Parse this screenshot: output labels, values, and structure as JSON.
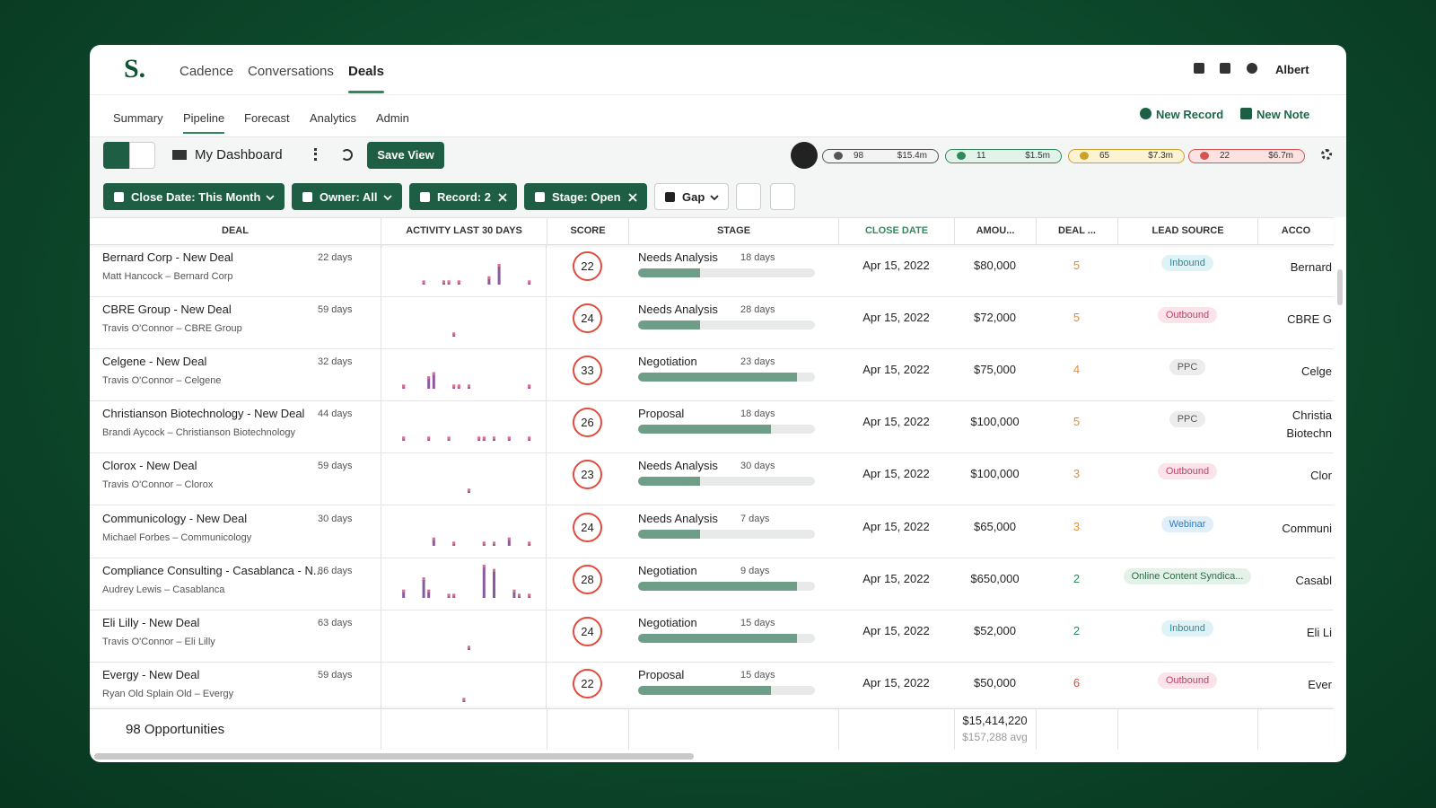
{
  "nav": {
    "logo": "S.",
    "items": [
      "Cadence",
      "Conversations",
      "Deals"
    ],
    "active": 2,
    "user": "Albert"
  },
  "subnav": {
    "items": [
      "Summary",
      "Pipeline",
      "Forecast",
      "Analytics",
      "Admin"
    ],
    "active": 1,
    "actions": [
      "New Record",
      "New Note"
    ]
  },
  "toolbar": {
    "view": "My Dashboard",
    "save": "Save View",
    "stats": [
      {
        "count": 98,
        "amount": "$15.4m",
        "color": "#555555",
        "bg": "#f3f3f3"
      },
      {
        "count": 11,
        "amount": "$1.5m",
        "color": "#2f8a5b",
        "bg": "#e3f3ea"
      },
      {
        "count": 65,
        "amount": "$7.3m",
        "color": "#c9a227",
        "bg": "#fbf3d4"
      },
      {
        "count": 22,
        "amount": "$6.7m",
        "color": "#d9534f",
        "bg": "#fbe3e3"
      }
    ]
  },
  "filters": [
    {
      "label": "Close Date: This Month",
      "removable": false,
      "dark": true
    },
    {
      "label": "Owner: All",
      "removable": false,
      "dark": true
    },
    {
      "label": "Record: 2",
      "removable": true,
      "dark": true
    },
    {
      "label": "Stage: Open",
      "removable": true,
      "dark": true
    },
    {
      "label": "Gap",
      "removable": false,
      "dark": false
    }
  ],
  "columns": [
    "DEAL",
    "ACTIVITY LAST 30 DAYS",
    "SCORE",
    "STAGE",
    "CLOSE DATE",
    "AMOU...",
    "DEAL ...",
    "LEAD SOURCE",
    "ACCO"
  ],
  "sorted_column": 4,
  "rows": [
    {
      "deal": "Bernard Corp - New Deal",
      "age": "22 days",
      "contact": "Matt Hancock – Bernard Corp",
      "activity": {
        "days": [
          6,
          10,
          11,
          13,
          19,
          21,
          27
        ],
        "counts": [
          1,
          1,
          1,
          1,
          2,
          5,
          1
        ]
      },
      "score": 22,
      "stage": "Needs Analysis",
      "stage_days": "18 days",
      "progress": 35,
      "close": "Apr 15, 2022",
      "amount": "$80,000",
      "deal_value": 5,
      "lead": "Inbound",
      "lead_color": "#2a8aa0",
      "lead_bg": "#dff2f5",
      "account": "Bernard"
    },
    {
      "deal": "CBRE Group - New Deal",
      "age": "59 days",
      "contact": "Travis O'Connor – CBRE Group",
      "activity": {
        "days": [
          12
        ],
        "counts": [
          1
        ]
      },
      "score": 24,
      "stage": "Needs Analysis",
      "stage_days": "28 days",
      "progress": 35,
      "close": "Apr 15, 2022",
      "amount": "$72,000",
      "deal_value": 5,
      "lead": "Outbound",
      "lead_color": "#c2416b",
      "lead_bg": "#fbe3ea",
      "account": "CBRE G"
    },
    {
      "deal": "Celgene - New Deal",
      "age": "32 days",
      "contact": "Travis O'Connor – Celgene",
      "activity": {
        "days": [
          2,
          7,
          8,
          12,
          13,
          15,
          27
        ],
        "counts": [
          1,
          3,
          4,
          1,
          1,
          1,
          1
        ]
      },
      "score": 33,
      "stage": "Negotiation",
      "stage_days": "23 days",
      "progress": 90,
      "close": "Apr 15, 2022",
      "amount": "$75,000",
      "deal_value": 4,
      "lead": "PPC",
      "lead_color": "#555555",
      "lead_bg": "#ececec",
      "account": "Celge"
    },
    {
      "deal": "Christianson Biotechnology - New Deal",
      "age": "44 days",
      "contact": "Brandi Aycock – Christianson Biotechnology",
      "activity": {
        "days": [
          2,
          7,
          11,
          17,
          18,
          20,
          23,
          27
        ],
        "counts": [
          1,
          1,
          1,
          1,
          1,
          1,
          1,
          1
        ]
      },
      "score": 26,
      "stage": "Proposal",
      "stage_days": "18 days",
      "progress": 75,
      "close": "Apr 15, 2022",
      "amount": "$100,000",
      "deal_value": 5,
      "lead": "PPC",
      "lead_color": "#555555",
      "lead_bg": "#ececec",
      "account": "Christia Biotechn"
    },
    {
      "deal": "Clorox - New Deal",
      "age": "59 days",
      "contact": "Travis O'Connor – Clorox",
      "activity": {
        "days": [
          15
        ],
        "counts": [
          1
        ]
      },
      "score": 23,
      "stage": "Needs Analysis",
      "stage_days": "30 days",
      "progress": 35,
      "close": "Apr 15, 2022",
      "amount": "$100,000",
      "deal_value": 3,
      "lead": "Outbound",
      "lead_color": "#c2416b",
      "lead_bg": "#fbe3ea",
      "account": "Clor"
    },
    {
      "deal": "Communicology - New Deal",
      "age": "30 days",
      "contact": "Michael Forbes – Communicology",
      "activity": {
        "days": [
          8,
          12,
          18,
          20,
          23,
          27
        ],
        "counts": [
          2,
          1,
          1,
          1,
          2,
          1
        ]
      },
      "score": 24,
      "stage": "Needs Analysis",
      "stage_days": "7 days",
      "progress": 35,
      "close": "Apr 15, 2022",
      "amount": "$65,000",
      "deal_value": 3,
      "lead": "Webinar",
      "lead_color": "#2f7bc2",
      "lead_bg": "#e1effb",
      "account": "Communi"
    },
    {
      "deal": "Compliance Consulting - Casablanca - N...",
      "age": "86 days",
      "contact": "Audrey Lewis – Casablanca",
      "activity": {
        "days": [
          2,
          6,
          7,
          11,
          12,
          18,
          20,
          24,
          25,
          27
        ],
        "counts": [
          2,
          5,
          2,
          1,
          1,
          8,
          7,
          2,
          1,
          1
        ]
      },
      "score": 28,
      "stage": "Negotiation",
      "stage_days": "9 days",
      "progress": 90,
      "close": "Apr 15, 2022",
      "amount": "$650,000",
      "deal_value": 2,
      "lead": "Online Content Syndica...",
      "lead_color": "#2b6a46",
      "lead_bg": "#e3f1e8",
      "account": "Casabl"
    },
    {
      "deal": "Eli Lilly - New Deal",
      "age": "63 days",
      "contact": "Travis O'Connor – Eli Lilly",
      "activity": {
        "days": [
          15
        ],
        "counts": [
          1
        ]
      },
      "score": 24,
      "stage": "Negotiation",
      "stage_days": "15 days",
      "progress": 90,
      "close": "Apr 15, 2022",
      "amount": "$52,000",
      "deal_value": 2,
      "lead": "Inbound",
      "lead_color": "#2a8aa0",
      "lead_bg": "#dff2f5",
      "account": "Eli Li"
    },
    {
      "deal": "Evergy - New Deal",
      "age": "59 days",
      "contact": "Ryan Old Splain Old – Evergy",
      "activity": {
        "days": [
          14
        ],
        "counts": [
          1
        ]
      },
      "score": 22,
      "stage": "Proposal",
      "stage_days": "15 days",
      "progress": 75,
      "close": "Apr 15, 2022",
      "amount": "$50,000",
      "deal_value": 6,
      "lead": "Outbound",
      "lead_color": "#c2416b",
      "lead_bg": "#fbe3ea",
      "account": "Ever"
    }
  ],
  "footer": {
    "count": "98 Opportunities",
    "total": "$15,414,220",
    "avg": "$157,288 avg"
  }
}
